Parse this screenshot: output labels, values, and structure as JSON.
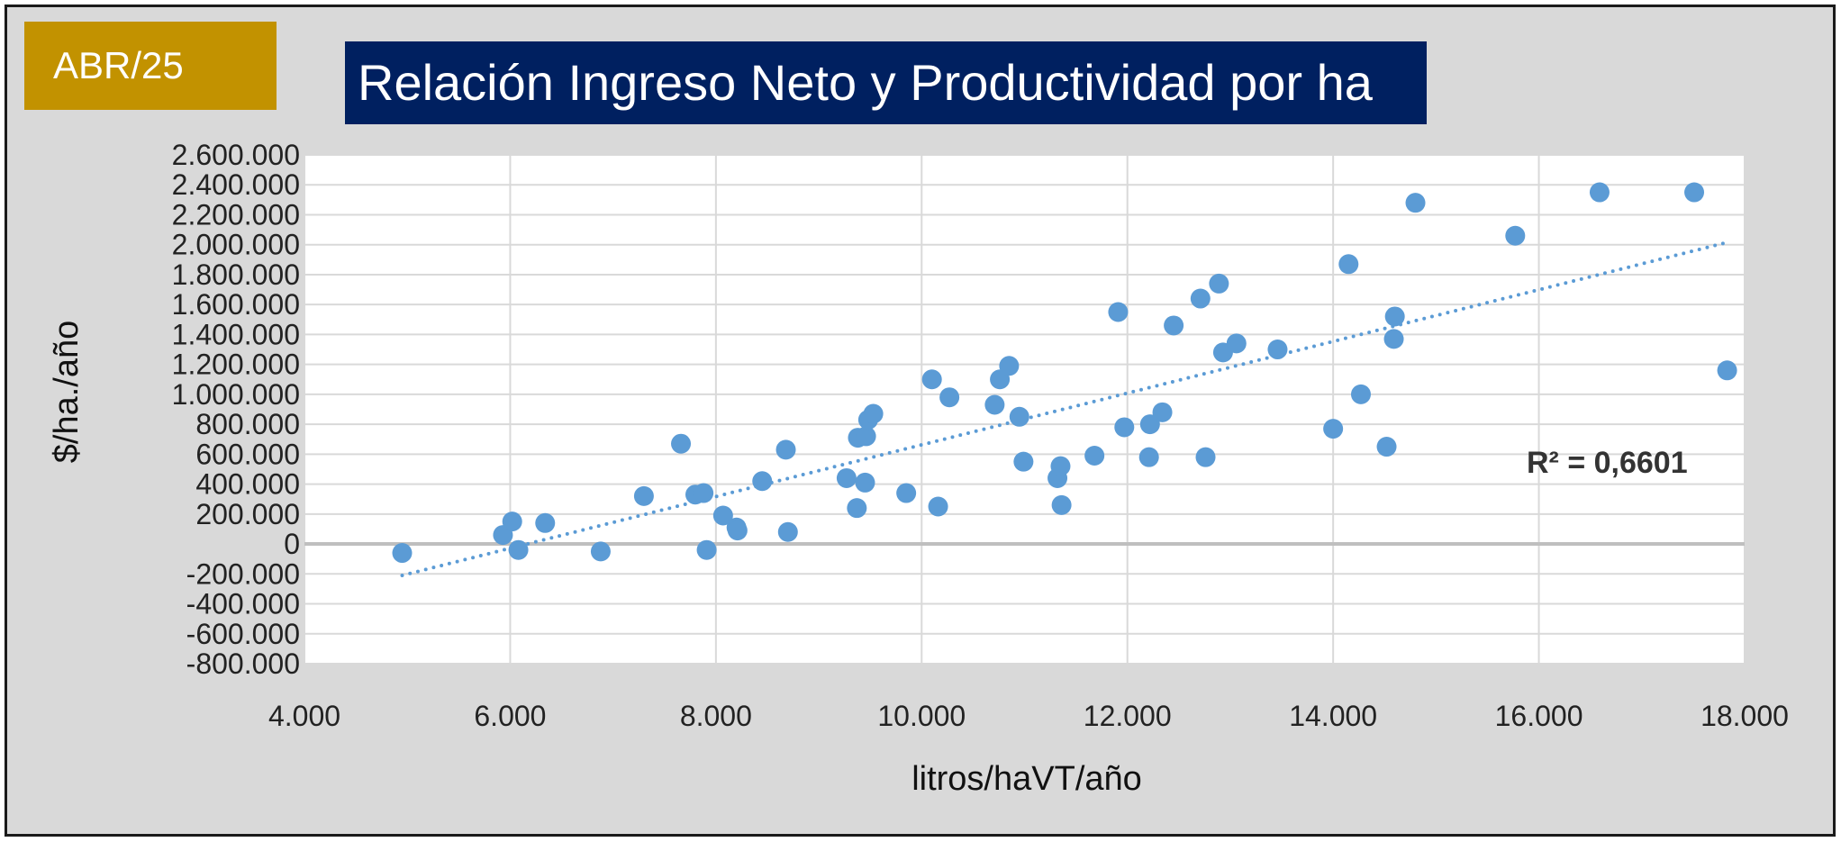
{
  "badge": {
    "label": "ABR/25",
    "color": "#c29200"
  },
  "header": {
    "title": "Relación Ingreso Neto y Productividad por ha",
    "color": "#002060"
  },
  "chart_data": {
    "type": "scatter",
    "title": "Relación Ingreso Neto y Productividad por ha",
    "xlabel": "litros/haVT/año",
    "ylabel": "$/ha./año",
    "xlim": [
      4000,
      18000
    ],
    "ylim": [
      -800000,
      2600000
    ],
    "xticks": [
      4000,
      6000,
      8000,
      10000,
      12000,
      14000,
      16000,
      18000
    ],
    "xtick_labels": [
      "4.000",
      "6.000",
      "8.000",
      "10.000",
      "12.000",
      "14.000",
      "16.000",
      "18.000"
    ],
    "yticks": [
      2600000,
      2400000,
      2200000,
      2000000,
      1800000,
      1600000,
      1400000,
      1200000,
      1000000,
      800000,
      600000,
      400000,
      200000,
      0,
      -200000,
      -400000,
      -600000,
      -800000
    ],
    "ytick_labels": [
      "2.600.000",
      "2.400.000",
      "2.200.000",
      "2.000.000",
      "1.800.000",
      "1.600.000",
      "1.400.000",
      "1.200.000",
      "1.000.000",
      "800.000",
      "600.000",
      "400.000",
      "200.000",
      "0",
      "-200.000",
      "-400.000",
      "-600.000",
      "-800.000"
    ],
    "grid": true,
    "marker_color": "#5b9bd5",
    "trendline": {
      "type": "linear",
      "x": [
        4950,
        17800
      ],
      "y": [
        -210000,
        2010000
      ],
      "color": "#5b9bd5",
      "style": "dotted",
      "r2_label": "R² = 0,6601"
    },
    "points": [
      {
        "x": 4950,
        "y": -60000
      },
      {
        "x": 5930,
        "y": 60000
      },
      {
        "x": 6020,
        "y": 150000
      },
      {
        "x": 6080,
        "y": -40000
      },
      {
        "x": 6340,
        "y": 140000
      },
      {
        "x": 6880,
        "y": -50000
      },
      {
        "x": 7300,
        "y": 320000
      },
      {
        "x": 7660,
        "y": 670000
      },
      {
        "x": 7800,
        "y": 330000
      },
      {
        "x": 7880,
        "y": 340000
      },
      {
        "x": 7910,
        "y": -40000
      },
      {
        "x": 8070,
        "y": 190000
      },
      {
        "x": 8200,
        "y": 110000
      },
      {
        "x": 8210,
        "y": 90000
      },
      {
        "x": 8450,
        "y": 420000
      },
      {
        "x": 8680,
        "y": 630000
      },
      {
        "x": 8700,
        "y": 80000
      },
      {
        "x": 9270,
        "y": 440000
      },
      {
        "x": 9370,
        "y": 240000
      },
      {
        "x": 9380,
        "y": 710000
      },
      {
        "x": 9450,
        "y": 410000
      },
      {
        "x": 9460,
        "y": 720000
      },
      {
        "x": 9480,
        "y": 830000
      },
      {
        "x": 9530,
        "y": 870000
      },
      {
        "x": 9850,
        "y": 340000
      },
      {
        "x": 10100,
        "y": 1100000
      },
      {
        "x": 10160,
        "y": 250000
      },
      {
        "x": 10270,
        "y": 980000
      },
      {
        "x": 10710,
        "y": 930000
      },
      {
        "x": 10760,
        "y": 1100000
      },
      {
        "x": 10850,
        "y": 1190000
      },
      {
        "x": 10950,
        "y": 850000
      },
      {
        "x": 10990,
        "y": 550000
      },
      {
        "x": 11320,
        "y": 440000
      },
      {
        "x": 11350,
        "y": 520000
      },
      {
        "x": 11360,
        "y": 260000
      },
      {
        "x": 11680,
        "y": 590000
      },
      {
        "x": 11910,
        "y": 1550000
      },
      {
        "x": 11970,
        "y": 780000
      },
      {
        "x": 12210,
        "y": 580000
      },
      {
        "x": 12220,
        "y": 800000
      },
      {
        "x": 12340,
        "y": 880000
      },
      {
        "x": 12450,
        "y": 1460000
      },
      {
        "x": 12710,
        "y": 1640000
      },
      {
        "x": 12760,
        "y": 580000
      },
      {
        "x": 12890,
        "y": 1740000
      },
      {
        "x": 12930,
        "y": 1280000
      },
      {
        "x": 13060,
        "y": 1340000
      },
      {
        "x": 13460,
        "y": 1300000
      },
      {
        "x": 14000,
        "y": 770000
      },
      {
        "x": 14150,
        "y": 1870000
      },
      {
        "x": 14270,
        "y": 1000000
      },
      {
        "x": 14520,
        "y": 650000
      },
      {
        "x": 14590,
        "y": 1370000
      },
      {
        "x": 14600,
        "y": 1520000
      },
      {
        "x": 14800,
        "y": 2280000
      },
      {
        "x": 15770,
        "y": 2060000
      },
      {
        "x": 16590,
        "y": 2350000
      },
      {
        "x": 17510,
        "y": 2350000
      },
      {
        "x": 17830,
        "y": 1160000
      }
    ]
  }
}
